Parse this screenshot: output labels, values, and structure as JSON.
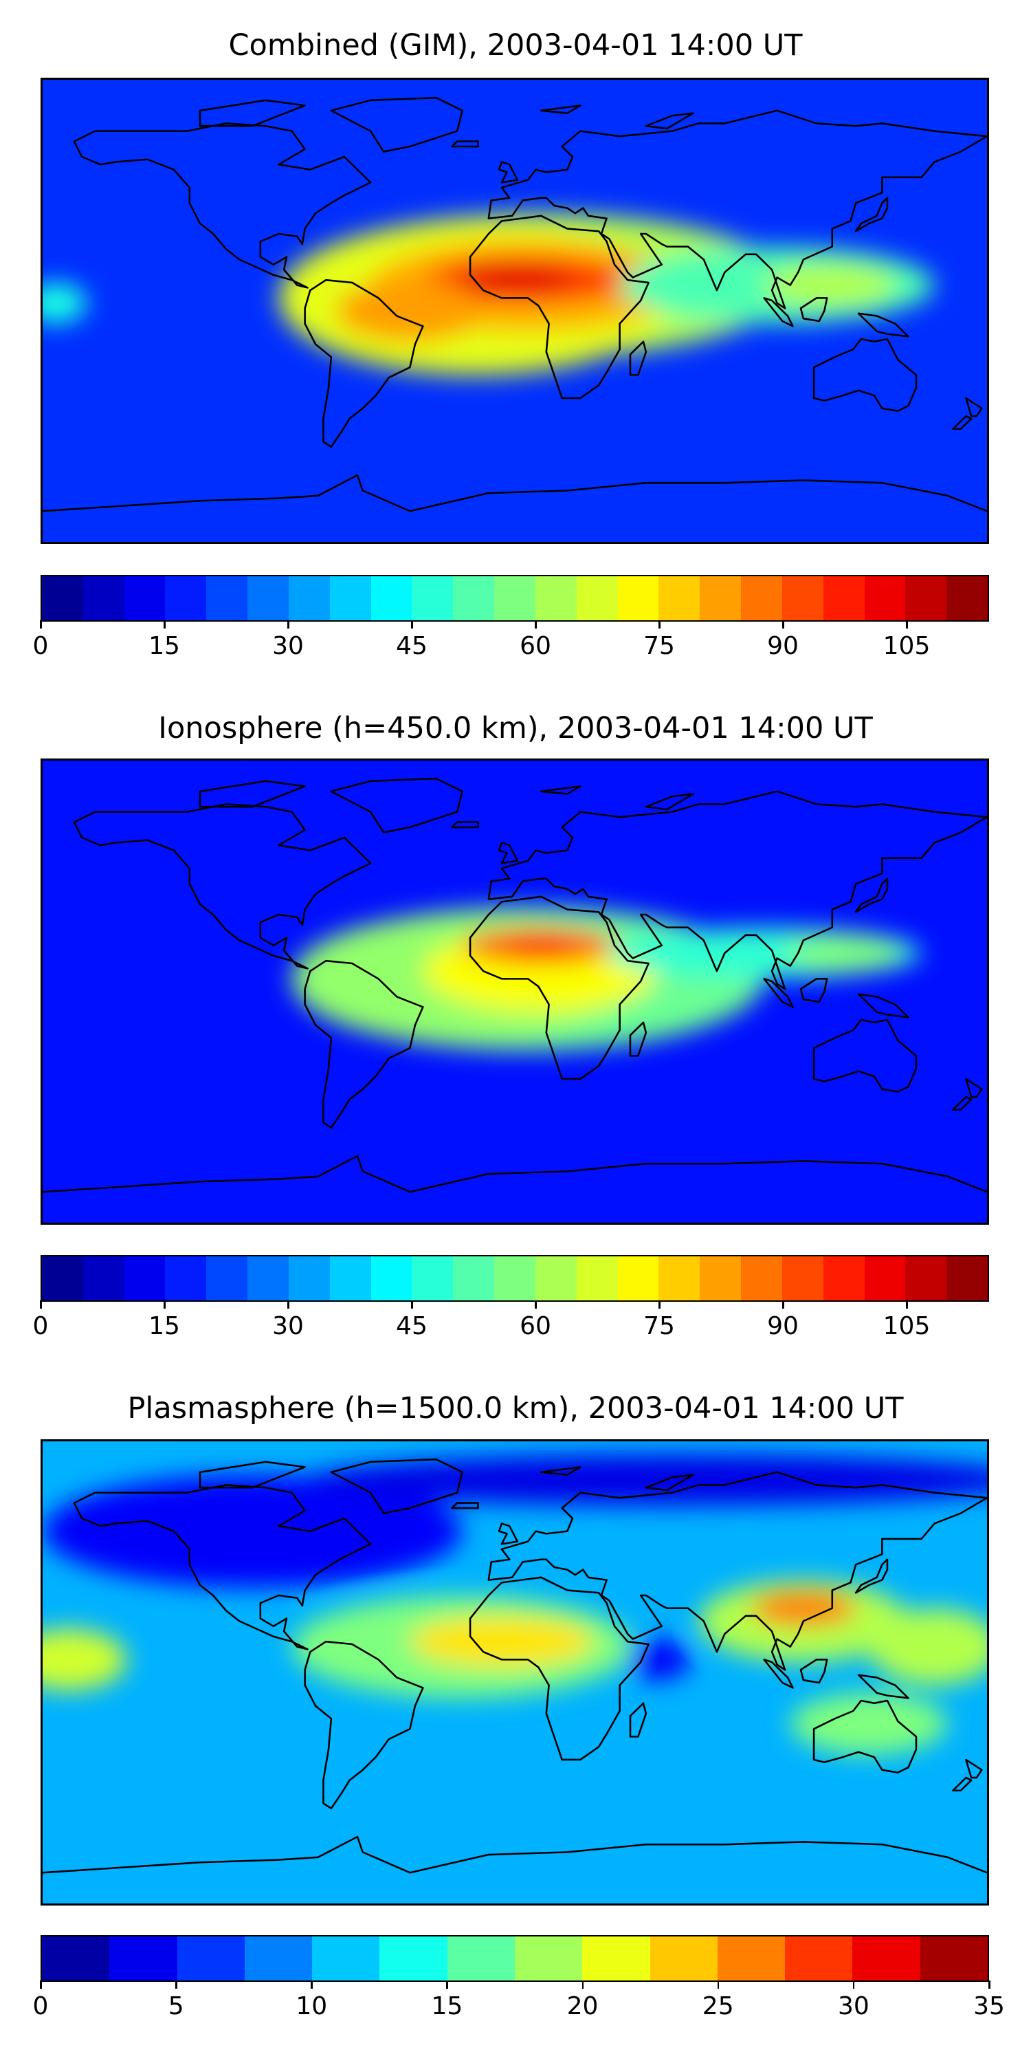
{
  "panels": [
    {
      "title": "Combined (GIM), 2003-04-01 14:00 UT",
      "colorbar": {
        "vmin": 0,
        "vmax": 115,
        "levels": 23,
        "ticks": [
          "0",
          "15",
          "30",
          "45",
          "60",
          "75",
          "90",
          "105"
        ],
        "tick_values": [
          0,
          15,
          30,
          45,
          60,
          75,
          90,
          105
        ]
      }
    },
    {
      "title": "Ionosphere  (h=450.0 km), 2003-04-01 14:00 UT",
      "colorbar": {
        "vmin": 0,
        "vmax": 115,
        "levels": 23,
        "ticks": [
          "0",
          "15",
          "30",
          "45",
          "60",
          "75",
          "90",
          "105"
        ],
        "tick_values": [
          0,
          15,
          30,
          45,
          60,
          75,
          90,
          105
        ]
      }
    },
    {
      "title": "Plasmasphere (h=1500.0 km), 2003-04-01 14:00 UT",
      "colorbar": {
        "vmin": 0,
        "vmax": 35,
        "levels": 14,
        "ticks": [
          "0",
          "5",
          "10",
          "15",
          "20",
          "25",
          "30",
          "35"
        ],
        "tick_values": [
          0,
          5,
          10,
          15,
          20,
          25,
          30,
          35
        ]
      }
    }
  ],
  "colormap": "jet",
  "colors": {
    "jet_stops": [
      "#00007f",
      "#0000ff",
      "#007fff",
      "#00ffff",
      "#7fff7f",
      "#ffff00",
      "#ff7f00",
      "#ff0000",
      "#7f0000"
    ],
    "coastline": "#000000"
  }
}
